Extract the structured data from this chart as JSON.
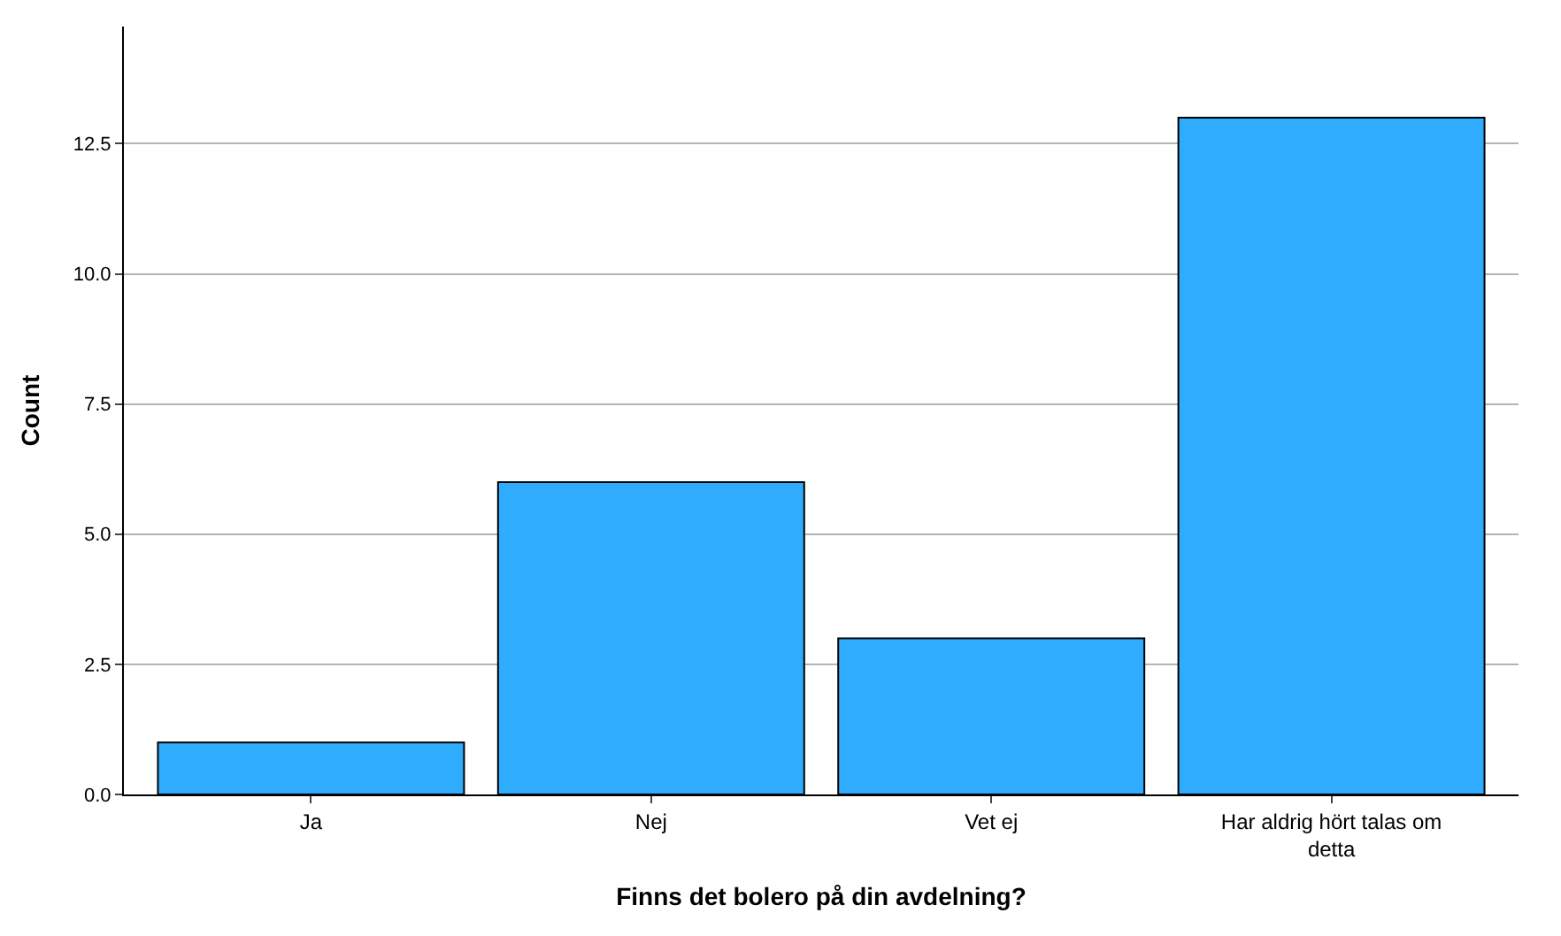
{
  "chart_data": {
    "type": "bar",
    "xlabel": "Finns det bolero på din avdelning?",
    "ylabel": "Count",
    "categories": [
      "Ja",
      "Nej",
      "Vet ej",
      "Har aldrig hört talas om detta"
    ],
    "values": [
      1,
      6,
      3,
      13
    ],
    "color": "#30acff",
    "ylim": [
      0,
      14.75
    ],
    "yticks": [
      {
        "value": 0,
        "label": "0.0"
      },
      2.5,
      {
        "value": 5,
        "label": "5.0"
      },
      7.5,
      {
        "value": 10,
        "label": "10.0"
      },
      12.5
    ],
    "grid": "y"
  }
}
